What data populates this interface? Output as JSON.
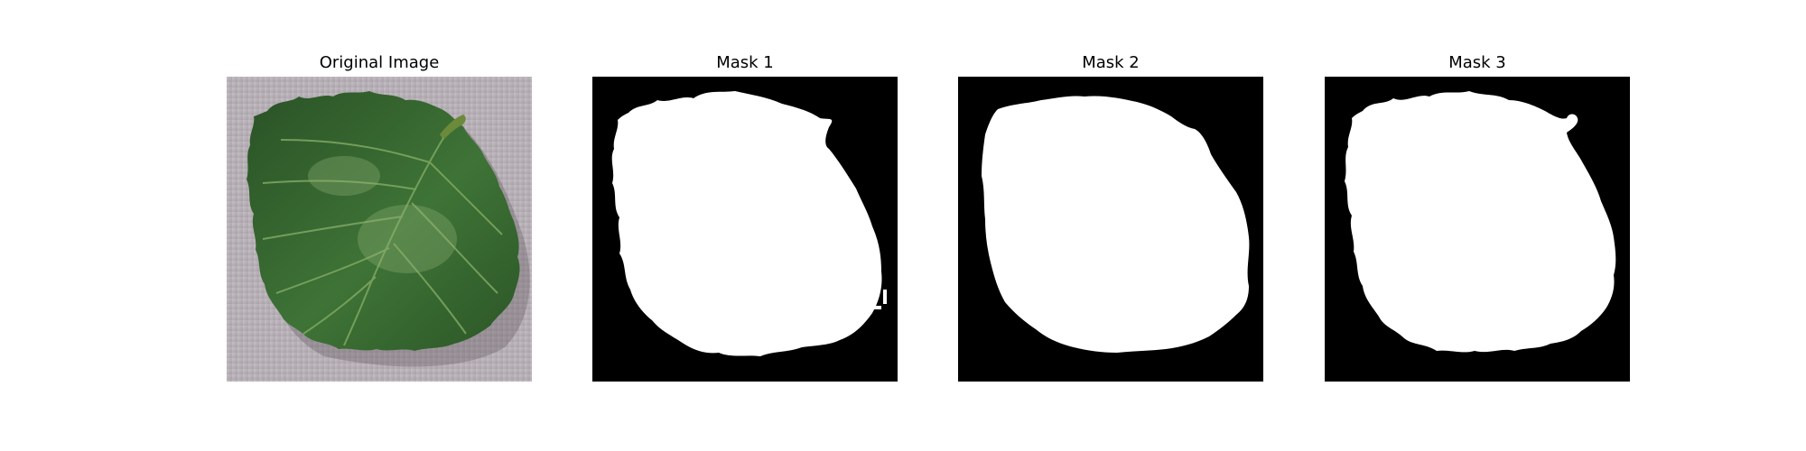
{
  "figure": {
    "panels": [
      {
        "title": "Original Image",
        "kind": "photo",
        "subject": "leaf-photo"
      },
      {
        "title": "Mask 1",
        "kind": "mask",
        "subject": "leaf-mask"
      },
      {
        "title": "Mask 2",
        "kind": "mask",
        "subject": "leaf-mask"
      },
      {
        "title": "Mask 3",
        "kind": "mask",
        "subject": "leaf-mask"
      }
    ]
  },
  "colors": {
    "background": "#ffffff",
    "photo_backdrop": "#b8b0b6",
    "leaf_dark": "#2f5a2a",
    "leaf_mid": "#3f7436",
    "leaf_light": "#6f9b58",
    "mask_background": "#000000",
    "mask_foreground": "#ffffff"
  }
}
